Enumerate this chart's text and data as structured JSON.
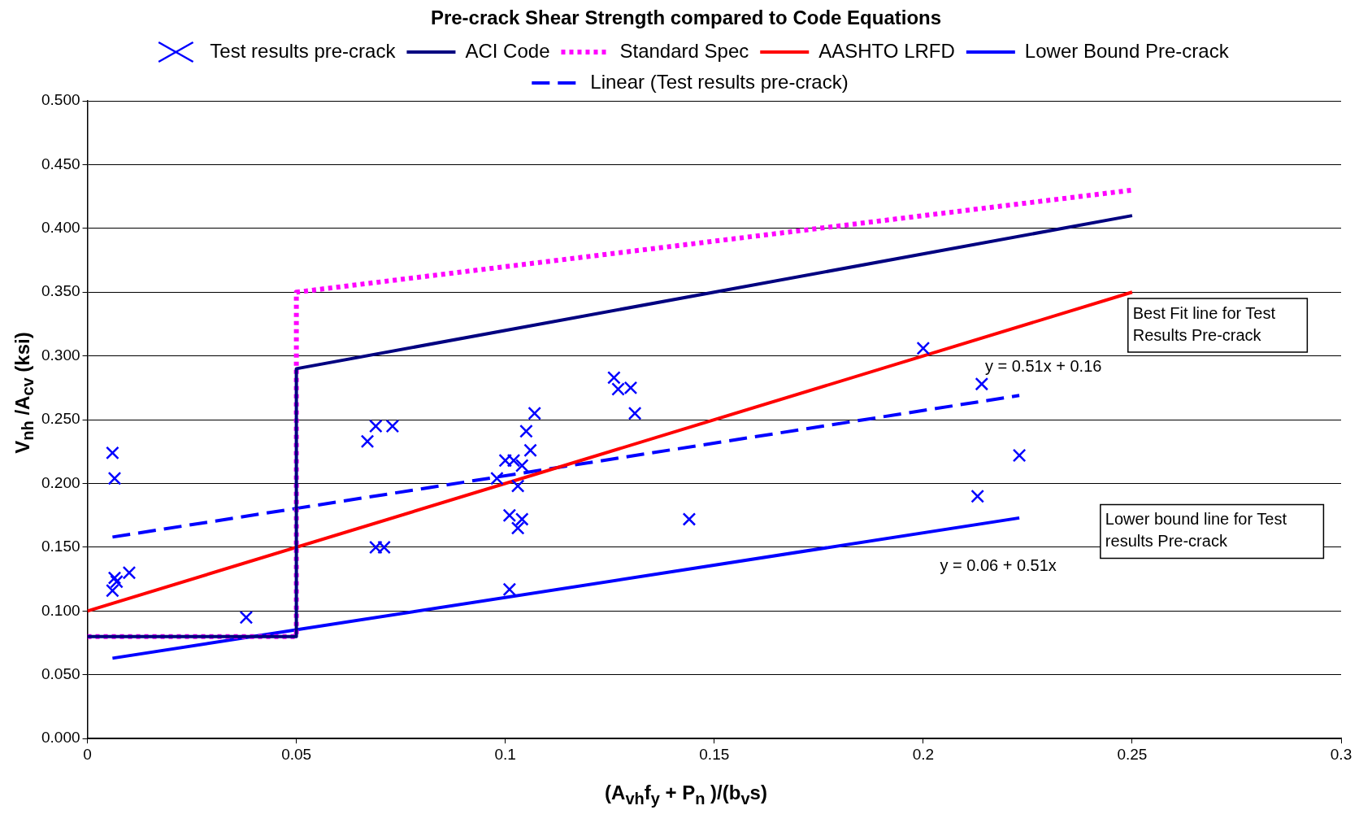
{
  "chart_data": {
    "type": "scatter",
    "title": "Pre-crack Shear Strength compared to Code Equations",
    "xlabel": "(A$_{vh}$f$_{y}$ + P$_{n}$ )/(b$_{v}$s)",
    "ylabel": "V$_{nh}$ /A$_{cv}$ (ksi)",
    "xlim": [
      0,
      0.3
    ],
    "xticks": [
      0,
      0.05,
      0.1,
      0.15,
      0.2,
      0.25,
      0.3
    ],
    "ylim": [
      0,
      0.5
    ],
    "yticks": [
      {
        "value": 0,
        "label": "0.000"
      },
      {
        "value": 0.05,
        "label": "0.050"
      },
      {
        "value": 0.1,
        "label": "0.100"
      },
      {
        "value": 0.15,
        "label": "0.150"
      },
      {
        "value": 0.2,
        "label": "0.200"
      },
      {
        "value": 0.25,
        "label": "0.250"
      },
      {
        "value": 0.3,
        "label": "0.300"
      },
      {
        "value": 0.35,
        "label": "0.350"
      },
      {
        "value": 0.4,
        "label": "0.400"
      },
      {
        "value": 0.45,
        "label": "0.450"
      },
      {
        "value": 0.5,
        "label": "0.500"
      }
    ],
    "grid": "y",
    "legend": "top",
    "series": [
      {
        "name": "Test results pre-crack",
        "marker": "cross",
        "color": "#0000ff",
        "x": [
          0.006,
          0.0065,
          0.0065,
          0.007,
          0.006,
          0.01,
          0.038,
          0.067,
          0.069,
          0.073,
          0.069,
          0.071,
          0.098,
          0.1,
          0.102,
          0.103,
          0.104,
          0.105,
          0.106,
          0.107,
          0.101,
          0.104,
          0.103,
          0.101,
          0.126,
          0.127,
          0.13,
          0.131,
          0.144,
          0.2,
          0.214,
          0.213,
          0.223
        ],
        "values": [
          0.224,
          0.204,
          0.126,
          0.123,
          0.116,
          0.13,
          0.095,
          0.233,
          0.245,
          0.245,
          0.15,
          0.15,
          0.204,
          0.218,
          0.218,
          0.198,
          0.214,
          0.241,
          0.226,
          0.255,
          0.175,
          0.172,
          0.165,
          0.117,
          0.283,
          0.274,
          0.275,
          0.255,
          0.172,
          0.306,
          0.278,
          0.19,
          0.222
        ]
      },
      {
        "name": "ACI Code",
        "type": "line",
        "marker": "none",
        "line_style": "solid",
        "color": "#000080",
        "x": [
          0,
          0.05,
          0.05,
          0.25
        ],
        "values": [
          0.08,
          0.08,
          0.29,
          0.41
        ]
      },
      {
        "name": "Standard Spec",
        "type": "line",
        "marker": "none",
        "line_style": "dotted",
        "color": "#ff00ff",
        "x": [
          0,
          0.05,
          0.05,
          0.25
        ],
        "values": [
          0.08,
          0.08,
          0.35,
          0.43
        ]
      },
      {
        "name": "AASHTO LRFD",
        "type": "line",
        "marker": "none",
        "line_style": "solid",
        "color": "#ff0000",
        "x": [
          0,
          0.25
        ],
        "values": [
          0.1,
          0.35
        ]
      },
      {
        "name": "Lower Bound Pre-crack",
        "type": "line",
        "marker": "none",
        "line_style": "solid",
        "color": "#0000ff",
        "x": [
          0.006,
          0.223
        ],
        "values": [
          0.063,
          0.173
        ]
      },
      {
        "name": "Linear (Test results pre-crack)",
        "type": "line",
        "marker": "none",
        "line_style": "dashed",
        "color": "#0000ff",
        "x": [
          0.006,
          0.223
        ],
        "values": [
          0.158,
          0.269
        ]
      }
    ],
    "annotations": [
      "Best Fit line for Test Results Pre-crack",
      "y = 0.51x + 0.16",
      "Lower bound line for Test results Pre-crack",
      "y = 0.06 + 0.51x"
    ]
  }
}
